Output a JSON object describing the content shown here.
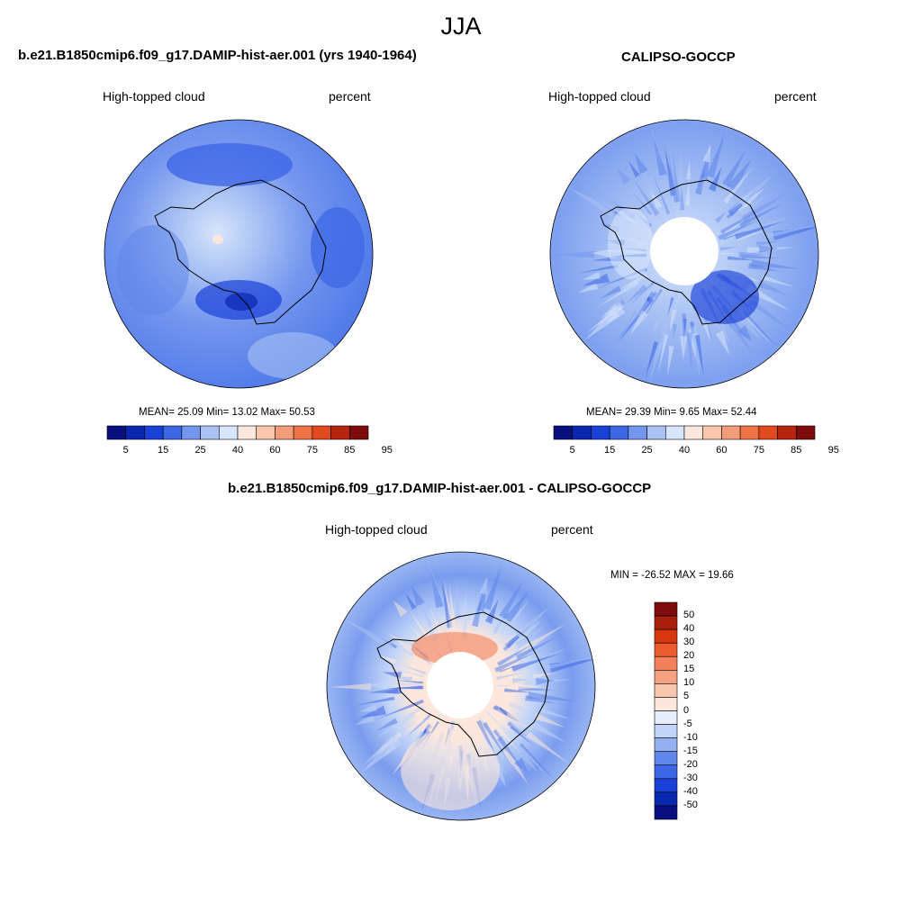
{
  "figure": {
    "title": "JJA"
  },
  "panels": {
    "model": {
      "title": "b.e21.B1850cmip6.f09_g17.DAMIP-hist-aer.001 (yrs 1940-1964)",
      "left_label": "High-topped cloud",
      "right_label": "percent",
      "stats": "MEAN=  25.09  Min=  13.02  Max=  50.53"
    },
    "obs": {
      "title": "CALIPSO-GOCCP",
      "left_label": "High-topped cloud",
      "right_label": "percent",
      "stats": "MEAN=  29.39  Min=   9.65  Max=  52.44"
    },
    "diff": {
      "title": "b.e21.B1850cmip6.f09_g17.DAMIP-hist-aer.001 - CALIPSO-GOCCP",
      "left_label": "High-topped cloud",
      "right_label": "percent",
      "minmax": "MIN = -26.52 MAX =  19.66"
    }
  },
  "colors": {
    "abs_scale": [
      "#0a0f80",
      "#0a27b0",
      "#1a40d8",
      "#3e67e6",
      "#7496ee",
      "#a9c2f4",
      "#d7e5fb",
      "#fde7dc",
      "#f9c6ae",
      "#f29c7c",
      "#ee7446",
      "#e14a1f",
      "#b52510",
      "#7f0c0c"
    ],
    "diff_scale": [
      "#0a0f80",
      "#0a27b0",
      "#1a40d8",
      "#3e67e6",
      "#6088ec",
      "#93b1f1",
      "#c2d5f8",
      "#e4eefc",
      "#fde7dc",
      "#f9c6ae",
      "#f5a283",
      "#f2805a",
      "#ec5b2c",
      "#d8360f",
      "#a8200b",
      "#7f0c0c"
    ]
  },
  "chart_data": [
    {
      "type": "heatmap",
      "title": "b.e21.B1850cmip6.f09_g17.DAMIP-hist-aer.001 (yrs 1940-1964)",
      "variable": "High-topped cloud",
      "units": "percent",
      "projection": "south polar stereographic",
      "mean": 25.09,
      "min": 13.02,
      "max": 50.53,
      "colorbar": {
        "orientation": "horizontal",
        "levels": [
          5,
          10,
          15,
          20,
          25,
          30,
          40,
          50,
          60,
          70,
          75,
          80,
          85,
          90,
          95
        ],
        "tick_labels": [
          "5",
          "15",
          "25",
          "40",
          "60",
          "75",
          "85",
          "95"
        ]
      }
    },
    {
      "type": "heatmap",
      "title": "CALIPSO-GOCCP",
      "variable": "High-topped cloud",
      "units": "percent",
      "projection": "south polar stereographic",
      "mean": 29.39,
      "min": 9.65,
      "max": 52.44,
      "colorbar": {
        "orientation": "horizontal",
        "levels": [
          5,
          10,
          15,
          20,
          25,
          30,
          40,
          50,
          60,
          70,
          75,
          80,
          85,
          90,
          95
        ],
        "tick_labels": [
          "5",
          "15",
          "25",
          "40",
          "60",
          "75",
          "85",
          "95"
        ]
      }
    },
    {
      "type": "heatmap",
      "title": "b.e21.B1850cmip6.f09_g17.DAMIP-hist-aer.001 - CALIPSO-GOCCP",
      "variable": "High-topped cloud",
      "units": "percent",
      "projection": "south polar stereographic",
      "min": -26.52,
      "max": 19.66,
      "colorbar": {
        "orientation": "vertical",
        "tick_labels": [
          "50",
          "40",
          "30",
          "20",
          "15",
          "10",
          "5",
          "0",
          "-5",
          "-10",
          "-15",
          "-20",
          "-30",
          "-40",
          "-50"
        ]
      }
    }
  ]
}
